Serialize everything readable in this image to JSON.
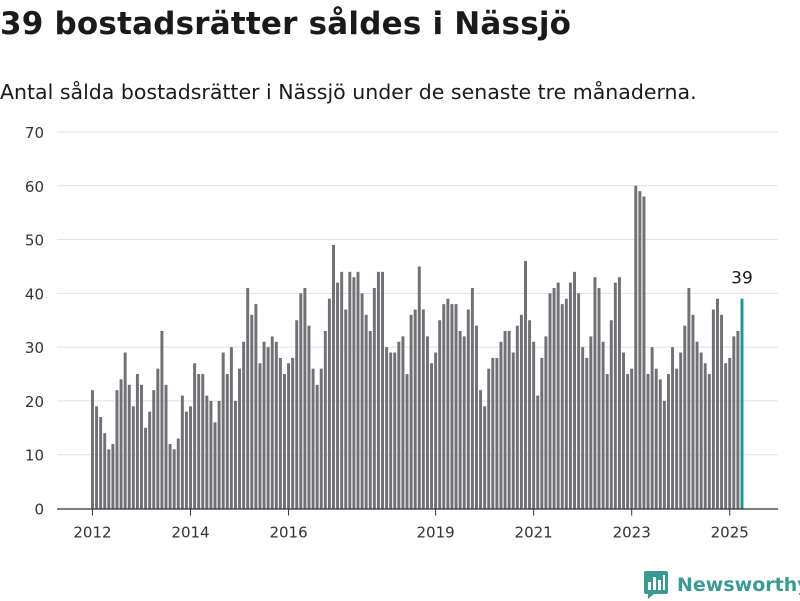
{
  "header": {
    "title": "39 bostadsrätter såldes i Nässjö",
    "subtitle": "Antal sålda bostadsrätter i Nässjö under de senaste tre månaderna."
  },
  "brand": {
    "name": "Newsworthy",
    "icon": "newsworthy-logo-icon"
  },
  "colors": {
    "bar": "#717075",
    "highlight": "#1a9a8e",
    "grid": "#e1e1e1",
    "axis": "#333333"
  },
  "chart_data": {
    "type": "bar",
    "x_start": "2012-01",
    "x_step": "month",
    "ylim": [
      0,
      70
    ],
    "yticks": [
      0,
      10,
      20,
      30,
      40,
      50,
      60,
      70
    ],
    "xticks": [
      "2012",
      "2014",
      "2016",
      "2019",
      "2021",
      "2023",
      "2025"
    ],
    "grid": "horizontal",
    "values": [
      22,
      19,
      17,
      14,
      11,
      12,
      22,
      24,
      29,
      23,
      19,
      25,
      23,
      15,
      18,
      22,
      26,
      33,
      23,
      12,
      11,
      13,
      21,
      18,
      19,
      27,
      25,
      25,
      21,
      20,
      16,
      20,
      29,
      25,
      30,
      20,
      26,
      31,
      41,
      36,
      38,
      27,
      31,
      30,
      32,
      31,
      28,
      25,
      27,
      28,
      35,
      40,
      41,
      34,
      26,
      23,
      26,
      33,
      39,
      49,
      42,
      44,
      37,
      44,
      43,
      44,
      40,
      36,
      33,
      41,
      44,
      44,
      30,
      29,
      29,
      31,
      32,
      25,
      36,
      37,
      45,
      37,
      32,
      27,
      29,
      35,
      38,
      39,
      38,
      38,
      33,
      32,
      37,
      41,
      34,
      22,
      19,
      26,
      28,
      28,
      31,
      33,
      33,
      29,
      34,
      36,
      46,
      35,
      31,
      21,
      28,
      32,
      40,
      41,
      42,
      38,
      39,
      42,
      44,
      40,
      30,
      28,
      32,
      43,
      41,
      31,
      25,
      35,
      42,
      43,
      29,
      25,
      26,
      60,
      59,
      58,
      25,
      30,
      26,
      24,
      20,
      25,
      30,
      26,
      29,
      34,
      41,
      36,
      31,
      29,
      27,
      25,
      37,
      39,
      36,
      27,
      28,
      32,
      33,
      39
    ],
    "highlight_label": "39"
  }
}
